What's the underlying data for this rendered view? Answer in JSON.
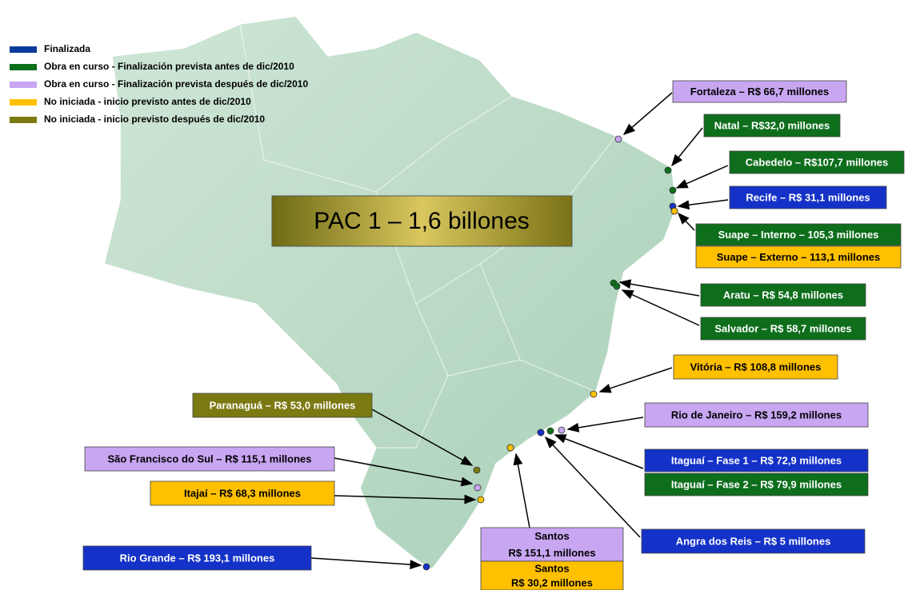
{
  "title": "PAC 1 – 1,6 billones",
  "legend": [
    {
      "label": "Finalizada",
      "color": "#0b3a9e"
    },
    {
      "label": "Obra en curso - Finalización prevista antes de dic/2010",
      "color": "#0e6e1c"
    },
    {
      "label": "Obra en curso - Finalización prevista después de dic/2010",
      "color": "#c8a6f2"
    },
    {
      "label": "No iniciada  - inicio previsto antes de dic/2010",
      "color": "#ffc000"
    },
    {
      "label": "No iniciada - inicio previsto después de dic/2010",
      "color": "#7b7a12"
    }
  ],
  "ports": [
    {
      "lines": [
        "Fortaleza – R$ 66,7 millones"
      ],
      "color": "#c8a6f2"
    },
    {
      "lines": [
        "Natal – R$32,0 millones"
      ],
      "color": "#0e6e1c"
    },
    {
      "lines": [
        "Cabedelo – R$107,7 millones"
      ],
      "color": "#0e6e1c"
    },
    {
      "lines": [
        "Recife – R$ 31,1 millones"
      ],
      "color": "#1432c8"
    },
    {
      "lines": [
        "Suape – Interno – 105,3 millones"
      ],
      "color": "#0e6e1c"
    },
    {
      "lines": [
        "Suape – Externo – 113,1 millones"
      ],
      "color": "#ffc000"
    },
    {
      "lines": [
        "Aratu – R$ 54,8 millones"
      ],
      "color": "#0e6e1c"
    },
    {
      "lines": [
        "Salvador – R$ 58,7 millones"
      ],
      "color": "#0e6e1c"
    },
    {
      "lines": [
        "Vitória – R$ 108,8 millones"
      ],
      "color": "#ffc000"
    },
    {
      "lines": [
        "Rio de Janeiro – R$ 159,2 millones"
      ],
      "color": "#c8a6f2"
    },
    {
      "lines": [
        "Itaguaí – Fase 1 – R$ 72,9 millones"
      ],
      "color": "#1432c8"
    },
    {
      "lines": [
        "Itaguaí – Fase 2 – R$ 79,9 millones"
      ],
      "color": "#0e6e1c"
    },
    {
      "lines": [
        "Angra dos Reis – R$ 5 millones"
      ],
      "color": "#1432c8"
    },
    {
      "lines": [
        "Santos",
        "R$ 151,1 millones"
      ],
      "color": "#c8a6f2"
    },
    {
      "lines": [
        "Santos",
        "R$ 30,2 millones"
      ],
      "color": "#ffc000"
    },
    {
      "lines": [
        "Paranaguá – R$ 53,0 millones"
      ],
      "color": "#7b7a12"
    },
    {
      "lines": [
        "São Francisco do Sul – R$ 115,1 millones"
      ],
      "color": "#c8a6f2"
    },
    {
      "lines": [
        "Itajaí – R$ 68,3 millones"
      ],
      "color": "#ffc000"
    },
    {
      "lines": [
        "Rio Grande – R$ 193,1 millones"
      ],
      "color": "#1432c8"
    }
  ]
}
